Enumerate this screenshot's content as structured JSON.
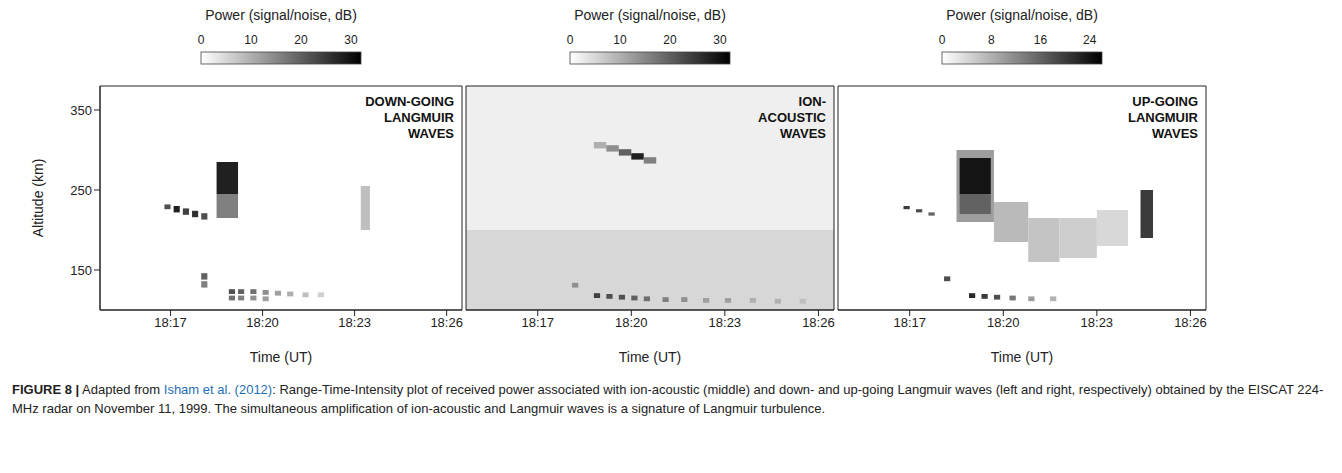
{
  "chart_data": [
    {
      "type": "heatmap",
      "title": [
        "DOWN-GOING",
        "LANGMUIR",
        "WAVES"
      ],
      "xlabel": "Time (UT)",
      "ylabel": "Altitude (km)",
      "xlim": [
        1094.7,
        1106.5
      ],
      "ylim": [
        100,
        380
      ],
      "xticks": [
        {
          "value": 1097,
          "label": "18:17"
        },
        {
          "value": 1100,
          "label": "18:20"
        },
        {
          "value": 1103,
          "label": "18:23"
        },
        {
          "value": 1106,
          "label": "18:26"
        }
      ],
      "yticks": [
        150,
        250,
        350
      ],
      "colorbar": {
        "title": "Power (signal/noise, dB)",
        "range": [
          0,
          32
        ],
        "ticks": [
          0,
          10,
          20,
          30
        ]
      },
      "cells": [
        {
          "t": [
            1098.5,
            1099.2
          ],
          "alt": [
            215,
            245
          ],
          "power": 16
        },
        {
          "t": [
            1098.5,
            1099.2
          ],
          "alt": [
            245,
            285
          ],
          "power": 28
        },
        {
          "t": [
            1103.2,
            1103.5
          ],
          "alt": [
            200,
            255
          ],
          "power": 8
        },
        {
          "t": [
            1096.8,
            1097.0
          ],
          "alt": [
            226,
            232
          ],
          "power": 22
        },
        {
          "t": [
            1097.1,
            1097.3
          ],
          "alt": [
            222,
            230
          ],
          "power": 28
        },
        {
          "t": [
            1097.4,
            1097.6
          ],
          "alt": [
            219,
            227
          ],
          "power": 24
        },
        {
          "t": [
            1097.7,
            1097.9
          ],
          "alt": [
            216,
            224
          ],
          "power": 26
        },
        {
          "t": [
            1098.0,
            1098.2
          ],
          "alt": [
            213,
            221
          ],
          "power": 22
        },
        {
          "t": [
            1098.0,
            1098.2
          ],
          "alt": [
            138,
            146
          ],
          "power": 20
        },
        {
          "t": [
            1098.0,
            1098.2
          ],
          "alt": [
            128,
            136
          ],
          "power": 16
        },
        {
          "t": [
            1098.9,
            1099.1
          ],
          "alt": [
            120,
            126
          ],
          "power": 22
        },
        {
          "t": [
            1098.9,
            1099.1
          ],
          "alt": [
            112,
            118
          ],
          "power": 18
        },
        {
          "t": [
            1099.2,
            1099.4
          ],
          "alt": [
            120,
            126
          ],
          "power": 20
        },
        {
          "t": [
            1099.2,
            1099.4
          ],
          "alt": [
            112,
            118
          ],
          "power": 16
        },
        {
          "t": [
            1099.6,
            1099.8
          ],
          "alt": [
            120,
            126
          ],
          "power": 18
        },
        {
          "t": [
            1099.6,
            1099.8
          ],
          "alt": [
            112,
            118
          ],
          "power": 14
        },
        {
          "t": [
            1100.0,
            1100.2
          ],
          "alt": [
            119,
            125
          ],
          "power": 14
        },
        {
          "t": [
            1100.0,
            1100.2
          ],
          "alt": [
            111,
            117
          ],
          "power": 12
        },
        {
          "t": [
            1100.4,
            1100.6
          ],
          "alt": [
            118,
            124
          ],
          "power": 12
        },
        {
          "t": [
            1100.8,
            1101.0
          ],
          "alt": [
            117,
            123
          ],
          "power": 10
        },
        {
          "t": [
            1101.3,
            1101.5
          ],
          "alt": [
            116,
            122
          ],
          "power": 8
        },
        {
          "t": [
            1101.8,
            1102.0
          ],
          "alt": [
            116,
            122
          ],
          "power": 6
        }
      ]
    },
    {
      "type": "heatmap",
      "title": [
        "ION-",
        "ACOUSTIC",
        "WAVES"
      ],
      "xlabel": "Time (UT)",
      "tick_labels": "x",
      "xlim": [
        1094.7,
        1106.5
      ],
      "ylim": [
        100,
        380
      ],
      "xticks": [
        {
          "value": 1097,
          "label": "18:17"
        },
        {
          "value": 1100,
          "label": "18:20"
        },
        {
          "value": 1103,
          "label": "18:23"
        },
        {
          "value": 1106,
          "label": "18:26"
        }
      ],
      "yticks": [
        150,
        250,
        350
      ],
      "colorbar": {
        "title": "Power (signal/noise, dB)",
        "range": [
          0,
          32
        ],
        "ticks": [
          0,
          10,
          20,
          30
        ]
      },
      "cells": [
        {
          "t": [
            1094.7,
            1106.5
          ],
          "alt": [
            100,
            200
          ],
          "power": 5
        },
        {
          "t": [
            1094.7,
            1106.5
          ],
          "alt": [
            200,
            380
          ],
          "power": 2
        },
        {
          "t": [
            1098.8,
            1099.2
          ],
          "alt": [
            302,
            310
          ],
          "power": 10
        },
        {
          "t": [
            1099.2,
            1099.6
          ],
          "alt": [
            298,
            306
          ],
          "power": 14
        },
        {
          "t": [
            1099.6,
            1100.0
          ],
          "alt": [
            293,
            301
          ],
          "power": 20
        },
        {
          "t": [
            1100.0,
            1100.4
          ],
          "alt": [
            288,
            296
          ],
          "power": 28
        },
        {
          "t": [
            1100.4,
            1100.8
          ],
          "alt": [
            283,
            291
          ],
          "power": 16
        },
        {
          "t": [
            1098.1,
            1098.3
          ],
          "alt": [
            128,
            134
          ],
          "power": 14
        },
        {
          "t": [
            1098.8,
            1099.0
          ],
          "alt": [
            115,
            121
          ],
          "power": 24
        },
        {
          "t": [
            1099.2,
            1099.4
          ],
          "alt": [
            114,
            120
          ],
          "power": 22
        },
        {
          "t": [
            1099.6,
            1099.8
          ],
          "alt": [
            113,
            119
          ],
          "power": 22
        },
        {
          "t": [
            1100.0,
            1100.2
          ],
          "alt": [
            112,
            118
          ],
          "power": 20
        },
        {
          "t": [
            1100.4,
            1100.6
          ],
          "alt": [
            111,
            117
          ],
          "power": 18
        },
        {
          "t": [
            1101.0,
            1101.2
          ],
          "alt": [
            110,
            116
          ],
          "power": 16
        },
        {
          "t": [
            1101.6,
            1101.8
          ],
          "alt": [
            110,
            116
          ],
          "power": 14
        },
        {
          "t": [
            1102.3,
            1102.5
          ],
          "alt": [
            109,
            115
          ],
          "power": 12
        },
        {
          "t": [
            1103.0,
            1103.2
          ],
          "alt": [
            109,
            115
          ],
          "power": 12
        },
        {
          "t": [
            1103.8,
            1104.0
          ],
          "alt": [
            109,
            115
          ],
          "power": 10
        },
        {
          "t": [
            1104.6,
            1104.8
          ],
          "alt": [
            108,
            114
          ],
          "power": 10
        },
        {
          "t": [
            1105.4,
            1105.6
          ],
          "alt": [
            108,
            114
          ],
          "power": 8
        }
      ]
    },
    {
      "type": "heatmap",
      "title": [
        "UP-GOING",
        "LANGMUIR",
        "WAVES"
      ],
      "xlabel": "Time (UT)",
      "tick_labels": "x",
      "xlim": [
        1094.7,
        1106.5
      ],
      "ylim": [
        100,
        380
      ],
      "xticks": [
        {
          "value": 1097,
          "label": "18:17"
        },
        {
          "value": 1100,
          "label": "18:20"
        },
        {
          "value": 1103,
          "label": "18:23"
        },
        {
          "value": 1106,
          "label": "18:26"
        }
      ],
      "yticks": [
        150,
        250,
        350
      ],
      "colorbar": {
        "title": "Power (signal/noise, dB)",
        "range": [
          0,
          26
        ],
        "ticks": [
          0,
          8,
          16,
          24
        ]
      },
      "cells": [
        {
          "t": [
            1098.5,
            1099.7
          ],
          "alt": [
            210,
            300
          ],
          "power": 10
        },
        {
          "t": [
            1098.6,
            1099.6
          ],
          "alt": [
            220,
            245
          ],
          "power": 16
        },
        {
          "t": [
            1098.6,
            1099.6
          ],
          "alt": [
            245,
            290
          ],
          "power": 24
        },
        {
          "t": [
            1099.7,
            1100.8
          ],
          "alt": [
            185,
            235
          ],
          "power": 7
        },
        {
          "t": [
            1100.8,
            1101.8
          ],
          "alt": [
            160,
            215
          ],
          "power": 6
        },
        {
          "t": [
            1101.8,
            1103.0
          ],
          "alt": [
            165,
            215
          ],
          "power": 5
        },
        {
          "t": [
            1103.0,
            1104.0
          ],
          "alt": [
            180,
            225
          ],
          "power": 4
        },
        {
          "t": [
            1104.4,
            1104.8
          ],
          "alt": [
            190,
            250
          ],
          "power": 20
        },
        {
          "t": [
            1096.8,
            1097.0
          ],
          "alt": [
            226,
            230
          ],
          "power": 20
        },
        {
          "t": [
            1097.2,
            1097.4
          ],
          "alt": [
            222,
            226
          ],
          "power": 18
        },
        {
          "t": [
            1097.6,
            1097.8
          ],
          "alt": [
            218,
            222
          ],
          "power": 16
        },
        {
          "t": [
            1098.1,
            1098.3
          ],
          "alt": [
            136,
            142
          ],
          "power": 18
        },
        {
          "t": [
            1098.9,
            1099.1
          ],
          "alt": [
            115,
            121
          ],
          "power": 22
        },
        {
          "t": [
            1099.3,
            1099.5
          ],
          "alt": [
            114,
            120
          ],
          "power": 20
        },
        {
          "t": [
            1099.7,
            1099.9
          ],
          "alt": [
            113,
            119
          ],
          "power": 18
        },
        {
          "t": [
            1100.2,
            1100.4
          ],
          "alt": [
            112,
            118
          ],
          "power": 14
        },
        {
          "t": [
            1100.8,
            1101.0
          ],
          "alt": [
            111,
            117
          ],
          "power": 10
        },
        {
          "t": [
            1101.5,
            1101.7
          ],
          "alt": [
            111,
            117
          ],
          "power": 8
        }
      ]
    }
  ],
  "caption": {
    "label": "FIGURE 8 |",
    "before": "Adapted from",
    "citation": "Isham et al. (2012)",
    "after": ": Range-Time-Intensity plot of received power associated with ion-acoustic (middle) and down- and up-going Langmuir waves (left and right, respectively) obtained by the EISCAT 224-MHz radar on November 11, 1999. The simultaneous amplification of ion-acoustic and Langmuir waves is a signature of Langmuir turbulence."
  }
}
